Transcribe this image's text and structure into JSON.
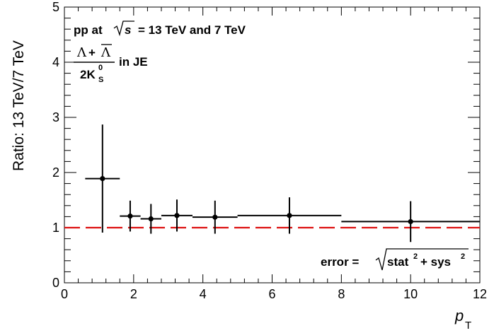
{
  "chart_data": {
    "type": "scatter",
    "xlabel": "p",
    "xlabel_subscript": "T",
    "ylabel": "Ratio: 13 TeV/7 TeV",
    "xlim": [
      0,
      12
    ],
    "ylim": [
      0,
      5
    ],
    "x_ticks": [
      0,
      2,
      4,
      6,
      8,
      10,
      12
    ],
    "x_tick_labels": [
      "0",
      "2",
      "4",
      "6",
      "8",
      "10",
      "12"
    ],
    "y_ticks": [
      0,
      1,
      2,
      3,
      4,
      5
    ],
    "y_tick_labels": [
      "0",
      "1",
      "2",
      "3",
      "4",
      "5"
    ],
    "grid": false,
    "marker_color": "#000000",
    "reference_line": {
      "y": 1,
      "style": "dashed",
      "color": "#dd1111"
    },
    "points": [
      {
        "x": 1.1,
        "x_low": 0.6,
        "x_high": 1.6,
        "y": 1.89,
        "y_err": 0.98
      },
      {
        "x": 1.9,
        "x_low": 1.6,
        "x_high": 2.2,
        "y": 1.21,
        "y_err": 0.28
      },
      {
        "x": 2.5,
        "x_low": 2.2,
        "x_high": 2.8,
        "y": 1.16,
        "y_err": 0.27
      },
      {
        "x": 3.25,
        "x_low": 2.8,
        "x_high": 3.7,
        "y": 1.22,
        "y_err": 0.29
      },
      {
        "x": 4.35,
        "x_low": 3.7,
        "x_high": 5.0,
        "y": 1.19,
        "y_err": 0.3
      },
      {
        "x": 6.5,
        "x_low": 5.0,
        "x_high": 8.0,
        "y": 1.22,
        "y_err": 0.33
      },
      {
        "x": 10.0,
        "x_low": 8.0,
        "x_high": 12.0,
        "y": 1.11,
        "y_err": 0.37
      }
    ]
  },
  "annotations": {
    "line1_prefix": "pp at",
    "sqrt_s": "s",
    "line1_suffix": "= 13 TeV and 7 TeV",
    "ratio_numerator_a": "Λ",
    "ratio_plus": "+",
    "ratio_numerator_b": "Λ",
    "ratio_denominator": "2K",
    "ratio_denominator_sup": "0",
    "ratio_denominator_sub": "S",
    "ratio_suffix": "in JE",
    "error_prefix": "error =",
    "error_stat": "stat",
    "error_stat_sup": "2",
    "error_plus": "+ sys",
    "error_sys_sup": "2"
  }
}
